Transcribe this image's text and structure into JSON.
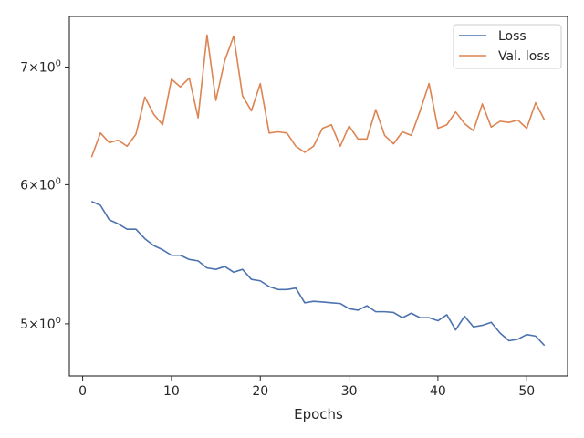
{
  "chart_data": {
    "type": "line",
    "title": "",
    "xlabel": "Epochs",
    "ylabel": "",
    "y_scale": "log",
    "xlim": [
      -1.5,
      54.6
    ],
    "ylim": [
      4.67,
      7.48
    ],
    "x_ticks": [
      0,
      10,
      20,
      30,
      40,
      50
    ],
    "x_tick_labels": [
      "0",
      "10",
      "20",
      "30",
      "40",
      "50"
    ],
    "y_ticks": [
      5,
      6,
      7
    ],
    "y_tick_labels": [
      {
        "base": "5",
        "mul": "×10",
        "exp": "0"
      },
      {
        "base": "6",
        "mul": "×10",
        "exp": "0"
      },
      {
        "base": "7",
        "mul": "×10",
        "exp": "0"
      }
    ],
    "grid": false,
    "legend_position": "upper right",
    "x": [
      1,
      2,
      3,
      4,
      5,
      6,
      7,
      8,
      9,
      10,
      11,
      12,
      13,
      14,
      15,
      16,
      17,
      18,
      19,
      20,
      21,
      22,
      23,
      24,
      25,
      26,
      27,
      28,
      29,
      30,
      31,
      32,
      33,
      34,
      35,
      36,
      37,
      38,
      39,
      40,
      41,
      42,
      43,
      44,
      45,
      46,
      47,
      48,
      49,
      50,
      51,
      52
    ],
    "series": [
      {
        "name": "Loss",
        "color": "#4c72b0",
        "values": [
          5.87,
          5.84,
          5.73,
          5.7,
          5.66,
          5.66,
          5.59,
          5.54,
          5.51,
          5.47,
          5.47,
          5.44,
          5.43,
          5.38,
          5.37,
          5.39,
          5.35,
          5.37,
          5.3,
          5.29,
          5.25,
          5.23,
          5.23,
          5.24,
          5.14,
          5.15,
          5.145,
          5.14,
          5.135,
          5.1,
          5.09,
          5.12,
          5.08,
          5.08,
          5.075,
          5.04,
          5.07,
          5.04,
          5.04,
          5.02,
          5.06,
          4.96,
          5.05,
          4.98,
          4.99,
          5.01,
          4.94,
          4.89,
          4.9,
          4.93,
          4.92,
          4.86
        ]
      },
      {
        "name": "Val. loss",
        "color": "#dd8452",
        "values": [
          6.22,
          6.42,
          6.34,
          6.36,
          6.31,
          6.41,
          6.73,
          6.58,
          6.49,
          6.89,
          6.82,
          6.9,
          6.55,
          7.3,
          6.7,
          7.06,
          7.29,
          6.74,
          6.61,
          6.85,
          6.42,
          6.43,
          6.42,
          6.31,
          6.26,
          6.31,
          6.46,
          6.49,
          6.31,
          6.48,
          6.37,
          6.37,
          6.62,
          6.4,
          6.33,
          6.43,
          6.4,
          6.61,
          6.85,
          6.46,
          6.49,
          6.6,
          6.5,
          6.44,
          6.67,
          6.47,
          6.52,
          6.51,
          6.53,
          6.46,
          6.68,
          6.53
        ]
      }
    ]
  }
}
